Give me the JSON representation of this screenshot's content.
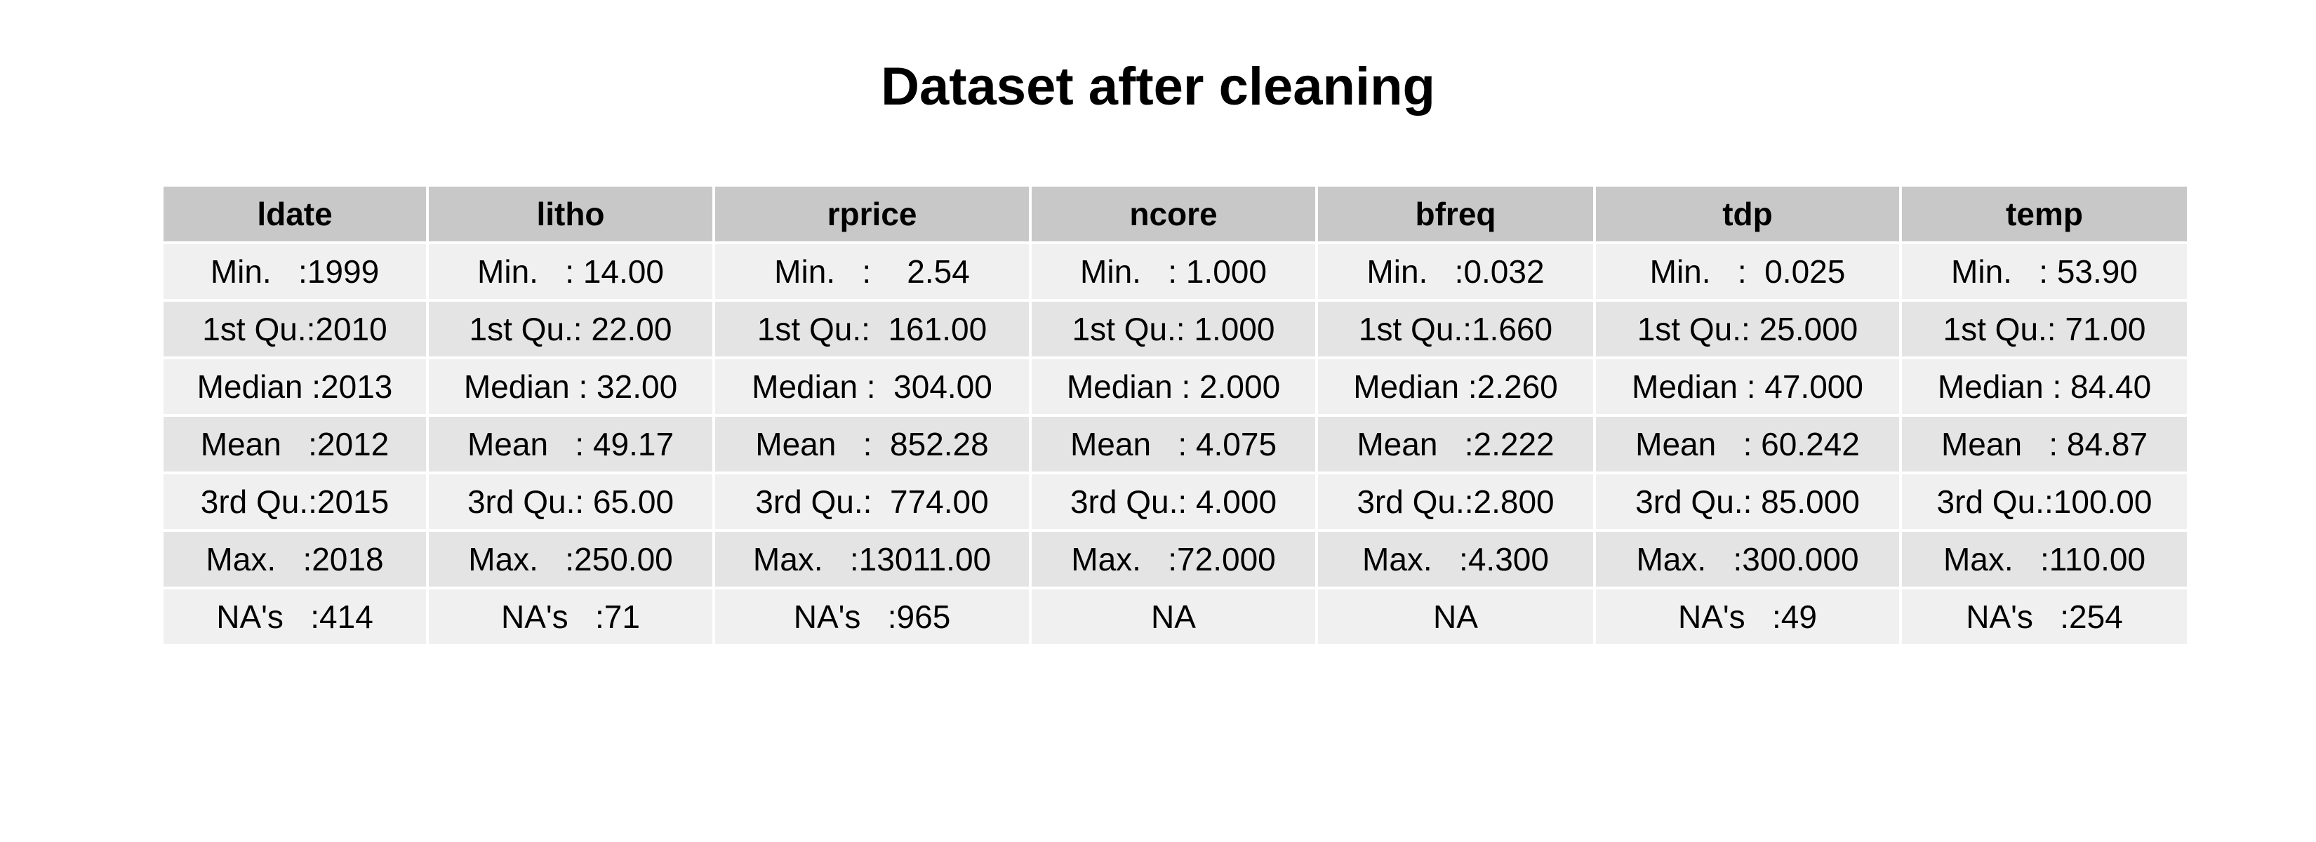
{
  "title": "Dataset after cleaning",
  "chart_data": {
    "type": "table",
    "title": "Dataset after cleaning",
    "columns": [
      "ldate",
      "litho",
      "rprice",
      "ncore",
      "bfreq",
      "tdp",
      "temp"
    ],
    "rows": [
      [
        "Min.   :1999",
        "Min.   : 14.00",
        "Min.   :    2.54",
        "Min.   : 1.000",
        "Min.   :0.032",
        "Min.   :  0.025",
        "Min.   : 53.90"
      ],
      [
        "1st Qu.:2010",
        "1st Qu.: 22.00",
        "1st Qu.:  161.00",
        "1st Qu.: 1.000",
        "1st Qu.:1.660",
        "1st Qu.: 25.000",
        "1st Qu.: 71.00"
      ],
      [
        "Median :2013",
        "Median : 32.00",
        "Median :  304.00",
        "Median : 2.000",
        "Median :2.260",
        "Median : 47.000",
        "Median : 84.40"
      ],
      [
        "Mean   :2012",
        "Mean   : 49.17",
        "Mean   :  852.28",
        "Mean   : 4.075",
        "Mean   :2.222",
        "Mean   : 60.242",
        "Mean   : 84.87"
      ],
      [
        "3rd Qu.:2015",
        "3rd Qu.: 65.00",
        "3rd Qu.:  774.00",
        "3rd Qu.: 4.000",
        "3rd Qu.:2.800",
        "3rd Qu.: 85.000",
        "3rd Qu.:100.00"
      ],
      [
        "Max.   :2018",
        "Max.   :250.00",
        "Max.   :13011.00",
        "Max.   :72.000",
        "Max.   :4.300",
        "Max.   :300.000",
        "Max.   :110.00"
      ],
      [
        "NA's   :414",
        "NA's   :71",
        "NA's   :965",
        "NA",
        "NA",
        "NA's   :49",
        "NA's   :254"
      ]
    ]
  }
}
